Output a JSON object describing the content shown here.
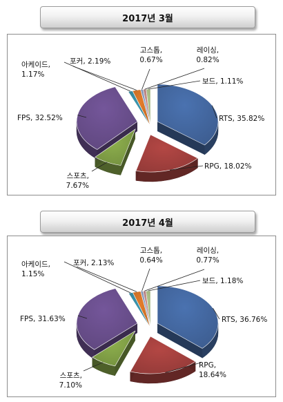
{
  "chart_data": [
    {
      "type": "pie",
      "title": "2017년 3월",
      "categories": [
        "RTS",
        "RPG",
        "스포츠",
        "FPS",
        "아케이드",
        "포커",
        "고스톱",
        "레이싱",
        "보드"
      ],
      "values": [
        35.82,
        18.02,
        7.67,
        32.52,
        1.17,
        2.19,
        0.67,
        0.82,
        1.11
      ],
      "labels": [
        "RTS, 35.82%",
        "RPG, 18.02%",
        "스포츠, 7.67%",
        "FPS, 32.52%",
        "아케이드, 1.17%",
        "포커, 2.19%",
        "고스톱, 0.67%",
        "레이싱, 0.82%",
        "보드, 1.11%"
      ],
      "colors": [
        "#4A72B0",
        "#B34744",
        "#8DAF4D",
        "#74569A",
        "#3C97AF",
        "#E47D2B",
        "#8FA5CB",
        "#C99191",
        "#B5C98D"
      ]
    },
    {
      "type": "pie",
      "title": "2017년 4월",
      "categories": [
        "RTS",
        "RPG",
        "스포츠",
        "FPS",
        "아케이드",
        "포커",
        "고스톱",
        "레이싱",
        "보드"
      ],
      "values": [
        36.76,
        18.64,
        7.1,
        31.63,
        1.15,
        2.13,
        0.64,
        0.77,
        1.18
      ],
      "labels": [
        "RTS, 36.76%",
        "RPG, 18.64%",
        "스포츠, 7.10%",
        "FPS, 31.63%",
        "아케이드, 1.15%",
        "포커, 2.13%",
        "고스톱, 0.64%",
        "레이싱, 0.77%",
        "보드, 1.18%"
      ],
      "colors": [
        "#4A72B0",
        "#B34744",
        "#8DAF4D",
        "#74569A",
        "#3C97AF",
        "#E47D2B",
        "#8FA5CB",
        "#C99191",
        "#B5C98D"
      ]
    }
  ]
}
